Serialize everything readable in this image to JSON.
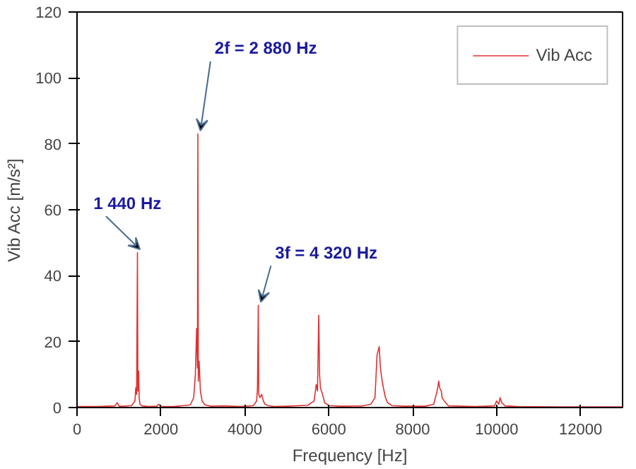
{
  "chart_data": {
    "type": "line",
    "xlabel": "Frequency [Hz]",
    "ylabel": "Vib Acc [m/s²]",
    "xlim": [
      0,
      13000
    ],
    "ylim": [
      0,
      120
    ],
    "xticks": [
      0,
      2000,
      4000,
      6000,
      8000,
      10000,
      12000
    ],
    "yticks": [
      0,
      20,
      40,
      60,
      80,
      100,
      120
    ],
    "grid": false,
    "legend": "top right",
    "marker": "none",
    "line_style": "solid",
    "series": [
      {
        "name": "Vib Acc",
        "color": "#e03030",
        "x": [
          0,
          500,
          900,
          960,
          1000,
          1100,
          1300,
          1380,
          1400,
          1420,
          1440,
          1450,
          1470,
          1480,
          1500,
          1550,
          1700,
          1900,
          1950,
          2000,
          2300,
          2700,
          2780,
          2820,
          2850,
          2870,
          2880,
          2890,
          2910,
          2940,
          2980,
          3050,
          3200,
          3500,
          3900,
          4200,
          4280,
          4300,
          4320,
          4330,
          4360,
          4400,
          4440,
          4480,
          4550,
          4700,
          5000,
          5500,
          5650,
          5700,
          5730,
          5760,
          5780,
          5800,
          5850,
          5900,
          6000,
          6300,
          6800,
          7000,
          7100,
          7150,
          7200,
          7230,
          7260,
          7300,
          7350,
          7400,
          7500,
          7800,
          8300,
          8500,
          8580,
          8620,
          8640,
          8680,
          8700,
          8750,
          8850,
          9500,
          9950,
          10000,
          10050,
          10080,
          10120,
          10200,
          10500,
          11500,
          13000
        ],
        "values": [
          0.3,
          0.3,
          0.5,
          1.5,
          0.4,
          0.4,
          0.6,
          2,
          6,
          4,
          47,
          5,
          11,
          3,
          1,
          0.5,
          0.3,
          0.4,
          1,
          0.3,
          0.3,
          0.8,
          3,
          10,
          24,
          12,
          83,
          8,
          14,
          5,
          2,
          0.8,
          0.4,
          0.5,
          0.3,
          0.6,
          2,
          6,
          31,
          4,
          3,
          4,
          2,
          1,
          0.6,
          0.3,
          0.4,
          0.7,
          2,
          7,
          5,
          28,
          10,
          6,
          4,
          1.5,
          0.6,
          0.4,
          0.5,
          1,
          3,
          16,
          18.5,
          12,
          9,
          6,
          3,
          1.5,
          0.6,
          0.4,
          0.4,
          1,
          5,
          8,
          6,
          5,
          3,
          2,
          0.5,
          0.3,
          0.5,
          2,
          1,
          3,
          1.5,
          0.5,
          0.3,
          0.2,
          0.2
        ]
      }
    ],
    "annotations": [
      {
        "text": "1 440 Hz",
        "x": 1440,
        "y": 47
      },
      {
        "text": "2f = 2 880 Hz",
        "x": 2880,
        "y": 83
      },
      {
        "text": "3f = 4 320 Hz",
        "x": 4320,
        "y": 31
      }
    ]
  }
}
